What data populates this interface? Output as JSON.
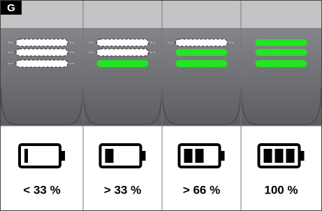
{
  "label": "G",
  "panels": [
    {
      "caption": "< 33 %"
    },
    {
      "caption": "> 33 %"
    },
    {
      "caption": "> 66 %"
    },
    {
      "caption": "100 %"
    }
  ]
}
